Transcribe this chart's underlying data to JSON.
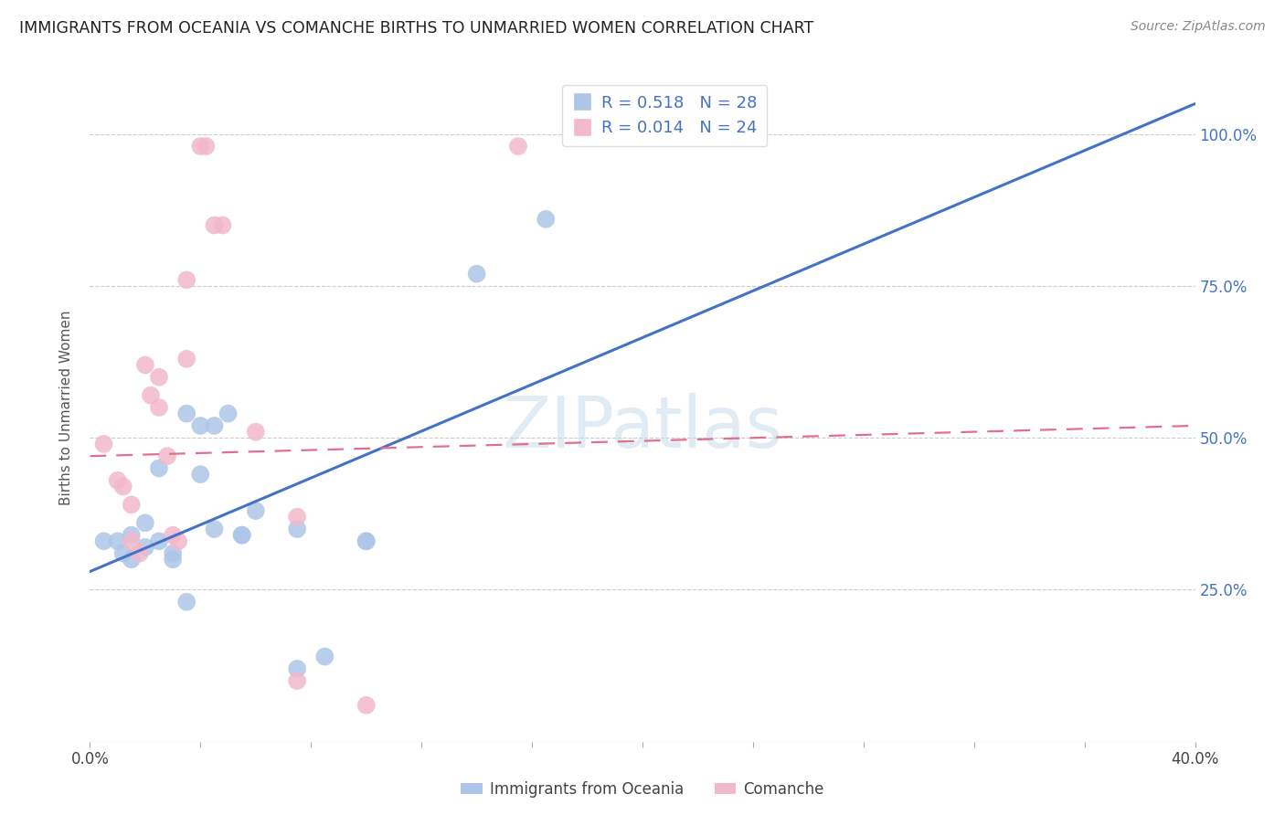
{
  "title": "IMMIGRANTS FROM OCEANIA VS COMANCHE BIRTHS TO UNMARRIED WOMEN CORRELATION CHART",
  "source": "Source: ZipAtlas.com",
  "ylabel": "Births to Unmarried Women",
  "legend_label1": "Immigrants from Oceania",
  "legend_label2": "Comanche",
  "R1": "0.518",
  "N1": "28",
  "R2": "0.014",
  "N2": "24",
  "color_blue": "#adc6e8",
  "color_pink": "#f2b8cc",
  "line_blue": "#4472c4",
  "line_pink": "#e07090",
  "watermark": "ZIPatlas",
  "blue_points": [
    [
      0.5,
      33
    ],
    [
      1.0,
      33
    ],
    [
      1.2,
      31
    ],
    [
      1.5,
      30
    ],
    [
      1.5,
      34
    ],
    [
      2.0,
      36
    ],
    [
      2.0,
      32
    ],
    [
      2.5,
      45
    ],
    [
      2.5,
      33
    ],
    [
      3.0,
      30
    ],
    [
      3.0,
      31
    ],
    [
      3.5,
      23
    ],
    [
      3.5,
      54
    ],
    [
      4.0,
      52
    ],
    [
      4.0,
      44
    ],
    [
      4.5,
      52
    ],
    [
      4.5,
      35
    ],
    [
      5.0,
      54
    ],
    [
      5.5,
      34
    ],
    [
      5.5,
      34
    ],
    [
      6.0,
      38
    ],
    [
      7.5,
      35
    ],
    [
      7.5,
      12
    ],
    [
      8.5,
      14
    ],
    [
      10.0,
      33
    ],
    [
      10.0,
      33
    ],
    [
      14.0,
      77
    ],
    [
      16.5,
      86
    ]
  ],
  "pink_points": [
    [
      0.5,
      49
    ],
    [
      1.0,
      43
    ],
    [
      1.2,
      42
    ],
    [
      1.5,
      39
    ],
    [
      1.5,
      33
    ],
    [
      1.8,
      31
    ],
    [
      2.0,
      62
    ],
    [
      2.2,
      57
    ],
    [
      2.5,
      60
    ],
    [
      2.5,
      55
    ],
    [
      2.8,
      47
    ],
    [
      3.0,
      34
    ],
    [
      3.2,
      33
    ],
    [
      3.5,
      76
    ],
    [
      3.5,
      63
    ],
    [
      4.0,
      98
    ],
    [
      4.2,
      98
    ],
    [
      4.5,
      85
    ],
    [
      4.8,
      85
    ],
    [
      6.0,
      51
    ],
    [
      7.5,
      37
    ],
    [
      7.5,
      10
    ],
    [
      10.0,
      6
    ],
    [
      15.5,
      98
    ]
  ],
  "xlim_pct": [
    0,
    40
  ],
  "ylim_pct": [
    0,
    110
  ],
  "xtick_positions": [
    0,
    4,
    8,
    12,
    16,
    20,
    24,
    28,
    32,
    36,
    40
  ],
  "ytick_positions": [
    25,
    50,
    75,
    100
  ],
  "blue_line_x": [
    0,
    40
  ],
  "blue_line_y": [
    28,
    105
  ],
  "pink_line_x": [
    0,
    40
  ],
  "pink_line_y": [
    47,
    52
  ]
}
